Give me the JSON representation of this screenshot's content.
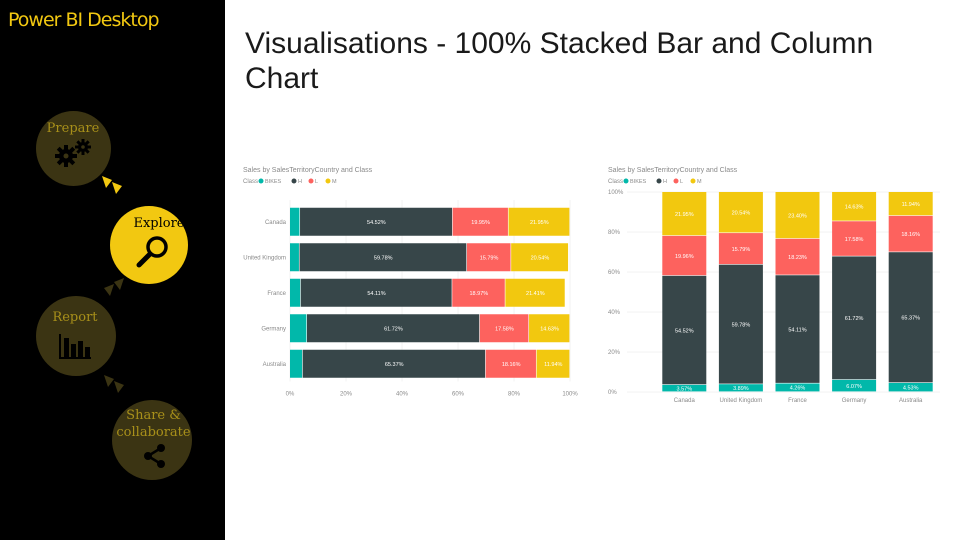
{
  "app": {
    "title": "Power BI Desktop"
  },
  "slide": {
    "title": "Visualisations - 100% Stacked Bar and Column Chart"
  },
  "workflow": {
    "steps": [
      {
        "label": "Prepare",
        "icon": "gears-icon",
        "active": false
      },
      {
        "label": "Explore",
        "icon": "magnifier-icon",
        "active": true
      },
      {
        "label": "Report",
        "icon": "bar-chart-icon",
        "active": false
      },
      {
        "label": "Share & collaborate",
        "icon": "share-icon",
        "active": false
      }
    ]
  },
  "colors": {
    "sidebar_bg": "#000000",
    "accent": "#f2c811",
    "inactive_step": "#3b3413",
    "inactive_text": "#a8901a",
    "seg_h": "#374649",
    "seg_l": "#fd625e",
    "seg_m": "#f2c80f",
    "seg_bikes": "#01b8aa"
  },
  "chart_data": [
    {
      "type": "bar",
      "orientation": "horizontal",
      "stacked": "100%",
      "title": "Sales by SalesTerritoryCountry and Class",
      "legend_title": "Class",
      "legend_position": "top-left",
      "categories": [
        "Canada",
        "United Kingdom",
        "France",
        "Germany",
        "Australia"
      ],
      "series": [
        {
          "name": "BIKES",
          "color": "#01b8aa",
          "values": [
            3.58,
            3.41,
            3.84,
            6.07,
            4.53
          ],
          "labels": [
            "",
            "",
            "",
            "",
            ""
          ]
        },
        {
          "name": "H",
          "color": "#374649",
          "values": [
            54.52,
            59.78,
            54.11,
            61.72,
            65.37
          ],
          "labels": [
            "54.52%",
            "59.78%",
            "54.11%",
            "61.72%",
            "65.37%"
          ]
        },
        {
          "name": "L",
          "color": "#fd625e",
          "values": [
            19.95,
            15.79,
            18.97,
            17.58,
            18.16
          ],
          "labels": [
            "19.95%",
            "15.79%",
            "18.97%",
            "17.58%",
            "18.16%"
          ]
        },
        {
          "name": "M",
          "color": "#f2c80f",
          "values": [
            21.95,
            20.54,
            21.41,
            14.63,
            11.94
          ],
          "labels": [
            "21.95%",
            "20.54%",
            "21.41%",
            "14.63%",
            "11.94%"
          ]
        }
      ],
      "x_ticks": [
        "0%",
        "20%",
        "40%",
        "60%",
        "80%",
        "100%"
      ],
      "xlim": [
        0,
        100
      ],
      "grid": true
    },
    {
      "type": "bar",
      "orientation": "vertical",
      "stacked": "100%",
      "title": "Sales by SalesTerritoryCountry and Class",
      "legend_title": "Class",
      "legend_position": "top-left",
      "categories": [
        "Canada",
        "United Kingdom",
        "France",
        "Germany",
        "Australia"
      ],
      "series": [
        {
          "name": "BIKES",
          "color": "#01b8aa",
          "values": [
            3.57,
            3.89,
            4.26,
            6.07,
            4.53
          ],
          "labels": [
            "3.57%",
            "3.89%",
            "4.26%",
            "6.07%",
            "4.53%"
          ]
        },
        {
          "name": "H",
          "color": "#374649",
          "values": [
            54.52,
            59.78,
            54.11,
            61.72,
            65.37
          ],
          "labels": [
            "54.52%",
            "59.78%",
            "54.11%",
            "61.72%",
            "65.37%"
          ]
        },
        {
          "name": "L",
          "color": "#fd625e",
          "values": [
            19.96,
            15.79,
            18.23,
            17.58,
            18.16
          ],
          "labels": [
            "19.96%",
            "15.79%",
            "18.23%",
            "17.58%",
            "18.16%"
          ]
        },
        {
          "name": "M",
          "color": "#f2c80f",
          "values": [
            21.95,
            20.54,
            23.4,
            14.63,
            11.94
          ],
          "labels": [
            "21.95%",
            "20.54%",
            "23.40%",
            "14.63%",
            "11.94%"
          ]
        }
      ],
      "y_ticks": [
        "100%",
        "80%",
        "60%",
        "40%",
        "20%",
        "0%"
      ],
      "ylim": [
        0,
        100
      ],
      "grid": true
    }
  ]
}
